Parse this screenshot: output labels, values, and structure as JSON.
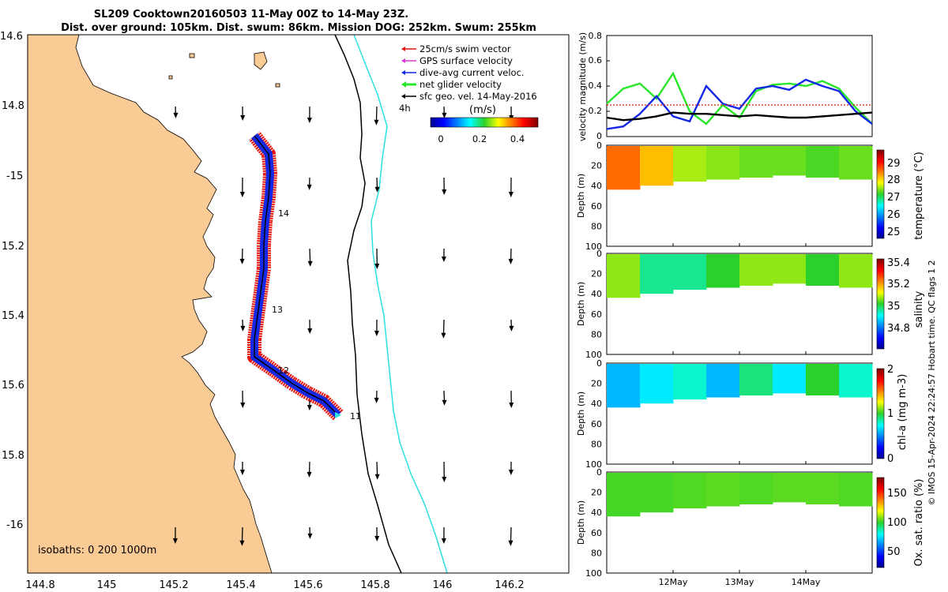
{
  "title": {
    "line1": "SL209 Cooktown20160503 11-May 00Z to 14-May 23Z.",
    "line2": "Dist. over ground: 105km. Dist. swum: 86km. Mission DOG: 252km. Swum: 255km"
  },
  "map": {
    "lon_ticks": [
      "144.8",
      "145",
      "145.2",
      "145.4",
      "145.6",
      "145.8",
      "146",
      "146.2"
    ],
    "lat_ticks": [
      "14.6",
      "14.8",
      "-15",
      "15.2",
      "15.4",
      "15.6",
      "15.8",
      "-16"
    ],
    "legend": [
      "25cm/s swim vector",
      "GPS surface velocity",
      "dive-avg current veloc.",
      "net glider velocity",
      "sfc geo. vel. 14-May-2016"
    ],
    "legend_colors": [
      "#e8140a",
      "#d23cd2",
      "#1428e6",
      "#28e628",
      "#000000"
    ],
    "time_label": "4h",
    "colorbar_title": "(m/s)",
    "colorbar_ticks": [
      "0",
      "0.2",
      "0.4"
    ],
    "day_labels": [
      "11",
      "12",
      "13",
      "14"
    ],
    "isobaths": "isobaths: 0   200  1000m",
    "land_color": "#fbcb96"
  },
  "panels": {
    "velocity_ylabel": "velocity magnitude (m/s)",
    "velocity_ticks": [
      "0",
      "0.2",
      "0.4",
      "0.6",
      "0.8"
    ],
    "depth_label": "Depth (m)",
    "depth_ticks": [
      "0",
      "20",
      "40",
      "60",
      "80",
      "100"
    ],
    "x_ticks": [
      "12May",
      "13May",
      "14May"
    ],
    "temperature": {
      "label": "temperature (°C)",
      "ticks": [
        "25",
        "26",
        "27",
        "28",
        "29"
      ]
    },
    "salinity": {
      "label": "salinity",
      "ticks": [
        "34.8",
        "35",
        "35.2",
        "35.4"
      ]
    },
    "chla": {
      "label": "chl-a (mg m-3)",
      "ticks": [
        "0",
        "1",
        "2"
      ]
    },
    "oxygen": {
      "label": "Ox. sat. ratio (%)",
      "ticks": [
        "50",
        "100",
        "150"
      ]
    },
    "side_note": "© IMOS 15-Apr-2024 22:24:57 Hobart time. QC flags 1  2"
  },
  "chart_data": [
    {
      "type": "line",
      "title": "SL209 Cooktown20160503 11-May 00Z to 14-May 23Z.",
      "xlabel": "",
      "ylabel": "velocity magnitude (m/s)",
      "ylim": [
        0,
        0.8
      ],
      "x_ticks": [
        "12May",
        "13May",
        "14May"
      ],
      "x": [
        "11.0",
        "11.25",
        "11.5",
        "11.75",
        "12.0",
        "12.25",
        "12.5",
        "12.75",
        "13.0",
        "13.25",
        "13.5",
        "13.75",
        "14.0",
        "14.25",
        "14.5",
        "14.75",
        "15.0"
      ],
      "series": [
        {
          "name": "net glider velocity",
          "color": "#28e628",
          "values": [
            0.26,
            0.38,
            0.42,
            0.3,
            0.5,
            0.2,
            0.1,
            0.25,
            0.15,
            0.36,
            0.41,
            0.42,
            0.4,
            0.44,
            0.38,
            0.23,
            0.1
          ]
        },
        {
          "name": "dive-avg current veloc.",
          "color": "#1428e6",
          "values": [
            0.06,
            0.08,
            0.18,
            0.32,
            0.16,
            0.12,
            0.4,
            0.26,
            0.22,
            0.38,
            0.4,
            0.37,
            0.45,
            0.4,
            0.36,
            0.2,
            0.1
          ]
        },
        {
          "name": "sfc geo. vel. 14-May-2016",
          "color": "#000000",
          "values": [
            0.15,
            0.13,
            0.14,
            0.16,
            0.19,
            0.18,
            0.18,
            0.17,
            0.16,
            0.17,
            0.16,
            0.15,
            0.15,
            0.16,
            0.17,
            0.18,
            0.19
          ]
        },
        {
          "name": "25cm/s swim vector",
          "color": "#e8140a",
          "values": [
            0.25,
            0.25,
            0.25,
            0.25,
            0.25,
            0.25,
            0.25,
            0.25,
            0.25,
            0.25,
            0.25,
            0.25,
            0.25,
            0.25,
            0.25,
            0.25,
            0.25
          ]
        }
      ]
    },
    {
      "type": "heatmap",
      "ylabel": "Depth (m)",
      "ylim": [
        100,
        0
      ],
      "colorbar_label": "temperature (°C)",
      "colorbar_range": [
        24.6,
        29.8
      ],
      "x_ticks": [
        "12May",
        "13May",
        "14May"
      ],
      "x": [
        "11.0",
        "11.5",
        "12.0",
        "12.5",
        "13.0",
        "13.5",
        "14.0",
        "14.5",
        "15.0"
      ],
      "values": [
        28.6,
        28.2,
        27.6,
        27.5,
        27.4,
        27.4,
        27.3,
        27.4,
        27.3
      ],
      "max_depth": [
        44,
        40,
        36,
        34,
        32,
        30,
        32,
        34,
        32
      ]
    },
    {
      "type": "heatmap",
      "ylabel": "Depth (m)",
      "ylim": [
        100,
        0
      ],
      "colorbar_label": "salinity",
      "colorbar_range": [
        34.65,
        35.45
      ],
      "x_ticks": [
        "12May",
        "13May",
        "14May"
      ],
      "x": [
        "11.0",
        "11.5",
        "12.0",
        "12.5",
        "13.0",
        "13.5",
        "14.0",
        "14.5",
        "15.0"
      ],
      "values": [
        35.1,
        35.0,
        35.0,
        35.05,
        35.1,
        35.1,
        35.05,
        35.1,
        35.05
      ],
      "max_depth": [
        44,
        40,
        36,
        34,
        32,
        30,
        32,
        34,
        32
      ]
    },
    {
      "type": "heatmap",
      "ylabel": "Depth (m)",
      "ylim": [
        100,
        0
      ],
      "colorbar_label": "chl-a (mg m-3)",
      "colorbar_range": [
        0,
        2
      ],
      "x_ticks": [
        "12May",
        "13May",
        "14May"
      ],
      "x": [
        "11.0",
        "11.5",
        "12.0",
        "12.5",
        "13.0",
        "13.5",
        "14.0",
        "14.5",
        "15.0"
      ],
      "values": [
        0.6,
        0.7,
        0.8,
        0.6,
        0.9,
        0.7,
        1.0,
        0.8,
        0.7
      ],
      "max_depth": [
        44,
        40,
        36,
        34,
        32,
        30,
        32,
        34,
        32
      ]
    },
    {
      "type": "heatmap",
      "ylabel": "Depth (m)",
      "ylim": [
        100,
        0
      ],
      "colorbar_label": "Ox. sat. ratio (%)",
      "colorbar_range": [
        20,
        175
      ],
      "x_ticks": [
        "12May",
        "13May",
        "14May"
      ],
      "x": [
        "11.0",
        "11.5",
        "12.0",
        "12.5",
        "13.0",
        "13.5",
        "14.0",
        "14.5",
        "15.0"
      ],
      "values": [
        100,
        100,
        101,
        102,
        101,
        102,
        102,
        101,
        102
      ],
      "max_depth": [
        44,
        40,
        36,
        34,
        32,
        30,
        32,
        34,
        32
      ]
    }
  ]
}
